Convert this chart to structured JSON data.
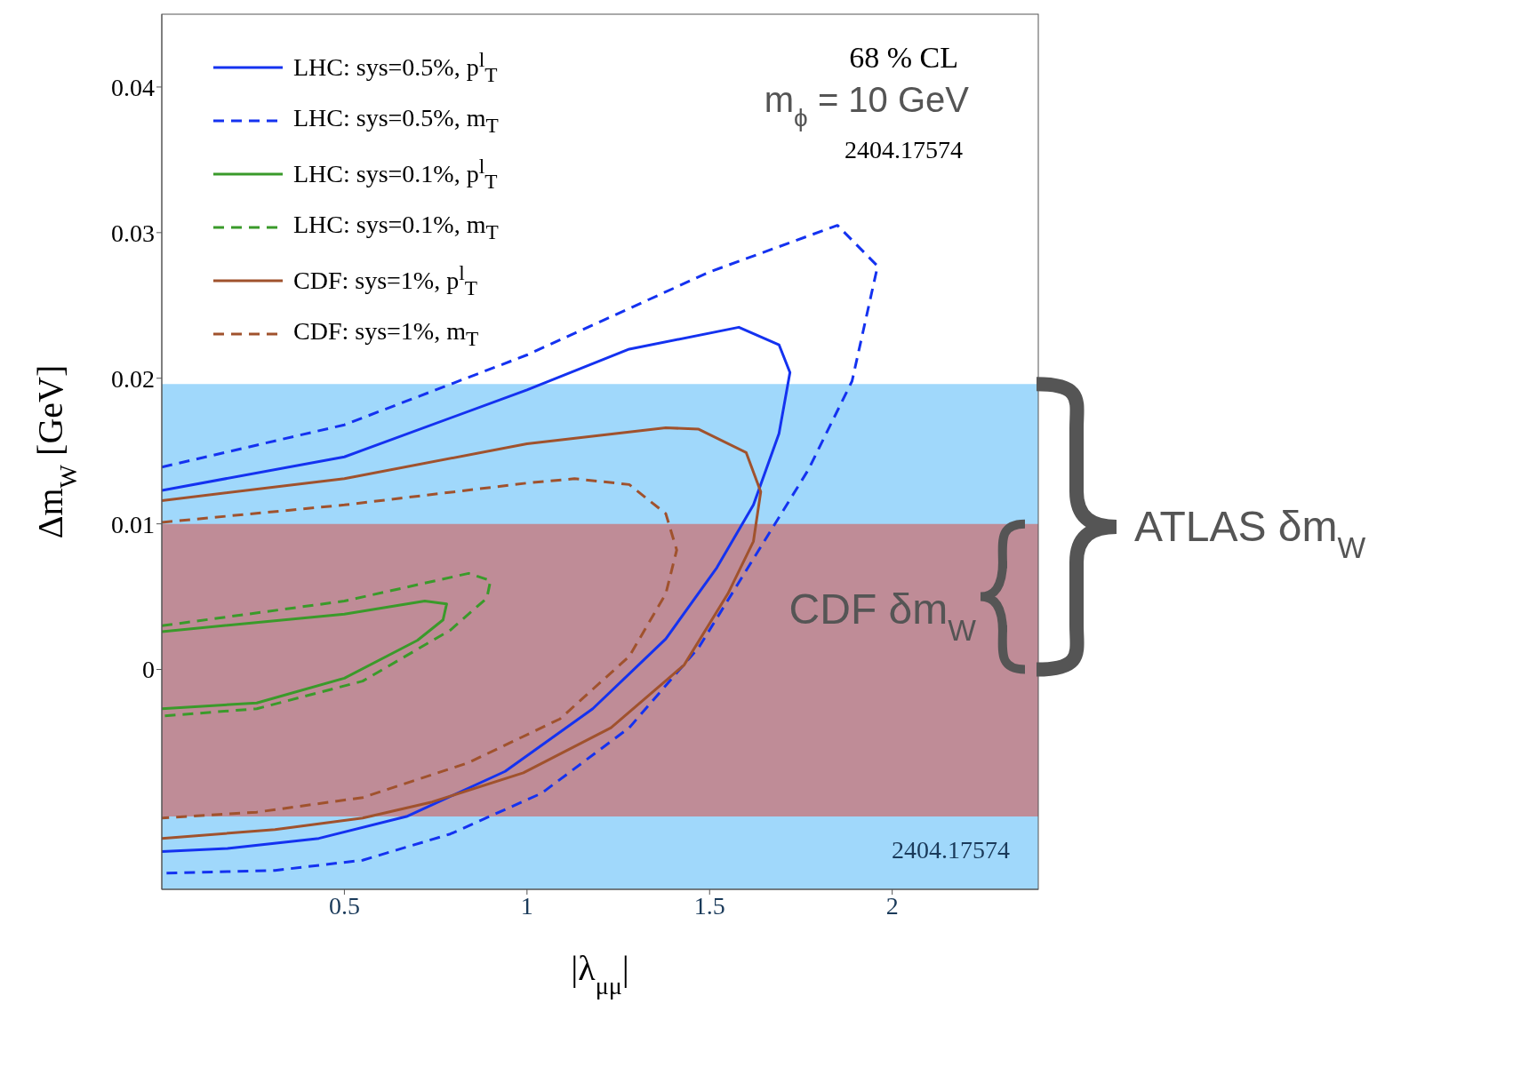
{
  "chart_data": {
    "type": "line",
    "xlabel": "|λ$_{μμ}$|",
    "ylabel": "Δm$_{W}$ [GeV]",
    "xlim": [
      0,
      2.4
    ],
    "xticks": [
      0.5,
      1,
      1.5,
      2
    ],
    "ylim": [
      -0.0151,
      0.045
    ],
    "yticks": [
      0,
      0.01,
      0.02,
      0.03,
      0.04
    ],
    "legend": "top left",
    "grid": false,
    "marker": "none",
    "bands": [
      {
        "axis": "y",
        "from": -0.0151,
        "to": 0.0196,
        "label": "ATLAS δm$_{W}$",
        "color": "#a0d8fb"
      },
      {
        "axis": "y",
        "from": -0.0101,
        "to": 0.01,
        "label": "CDF δm$_{W}$",
        "color": "#bf8c97"
      }
    ],
    "annotations": [
      "68 % CL",
      "m$_{ϕ}$ = 10 GeV",
      "2404.17574",
      "2404.17574"
    ],
    "series": [
      {
        "name": "LHC: sys=0.5%, p$^{l}$$_{T}$",
        "color": "#1432f0",
        "line_style": "solid",
        "x": [
          0,
          0.5,
          1,
          1.28,
          1.58,
          1.69,
          1.72,
          1.69,
          1.62,
          1.52,
          1.38,
          1.18,
          0.94,
          0.67,
          0.43,
          0.18,
          0
        ],
        "values": [
          0.0123,
          0.0146,
          0.0192,
          0.022,
          0.0235,
          0.0223,
          0.0204,
          0.0162,
          0.0113,
          0.007,
          0.0021,
          -0.0027,
          -0.007,
          -0.0101,
          -0.0116,
          -0.0123,
          -0.0125
        ]
      },
      {
        "name": "LHC: sys=0.5%, m$_{T}$",
        "color": "#1432f0",
        "line_style": "dashed",
        "x": [
          0,
          0.5,
          1,
          1.5,
          1.85,
          1.96,
          1.89,
          1.77,
          1.62,
          1.47,
          1.28,
          1.04,
          0.79,
          0.55,
          0.31,
          0
        ],
        "values": [
          0.0139,
          0.0168,
          0.0216,
          0.0273,
          0.0305,
          0.0277,
          0.0198,
          0.0137,
          0.0076,
          0.0015,
          -0.004,
          -0.0085,
          -0.0113,
          -0.0131,
          -0.0138,
          -0.014
        ]
      },
      {
        "name": "LHC: sys=0.1%, p$^{l}$$_{T}$",
        "color": "#3a9a2a",
        "line_style": "solid",
        "x": [
          0,
          0.5,
          0.72,
          0.78,
          0.77,
          0.7,
          0.5,
          0.26,
          0
        ],
        "values": [
          0.0026,
          0.0038,
          0.0047,
          0.0045,
          0.0034,
          0.002,
          -0.0006,
          -0.0023,
          -0.0027
        ]
      },
      {
        "name": "LHC: sys=0.1%, m$_{T}$",
        "color": "#3a9a2a",
        "line_style": "dashed",
        "x": [
          0,
          0.5,
          0.84,
          0.9,
          0.89,
          0.79,
          0.55,
          0.26,
          0
        ],
        "values": [
          0.003,
          0.0047,
          0.0066,
          0.0061,
          0.0049,
          0.0027,
          -0.0008,
          -0.0027,
          -0.0032
        ]
      },
      {
        "name": "CDF: sys=1%, p$^{l}$$_{T}$",
        "color": "#a0522d",
        "line_style": "solid",
        "x": [
          0,
          0.5,
          1,
          1.38,
          1.47,
          1.6,
          1.64,
          1.62,
          1.55,
          1.43,
          1.23,
          0.99,
          0.74,
          0.55,
          0.31,
          0
        ],
        "values": [
          0.0116,
          0.0131,
          0.0155,
          0.0166,
          0.0165,
          0.0149,
          0.0122,
          0.0088,
          0.0052,
          0.0003,
          -0.004,
          -0.0071,
          -0.0091,
          -0.0102,
          -0.011,
          -0.0116
        ]
      },
      {
        "name": "CDF: sys=1%, m$_{T}$",
        "color": "#a0522d",
        "line_style": "dashed",
        "x": [
          0,
          0.5,
          1,
          1.13,
          1.28,
          1.38,
          1.41,
          1.38,
          1.28,
          1.09,
          0.84,
          0.55,
          0.26,
          0
        ],
        "values": [
          0.0101,
          0.0113,
          0.0128,
          0.0131,
          0.0127,
          0.0107,
          0.0082,
          0.0052,
          0.0009,
          -0.0034,
          -0.0064,
          -0.0088,
          -0.0098,
          -0.0102
        ]
      }
    ]
  }
}
